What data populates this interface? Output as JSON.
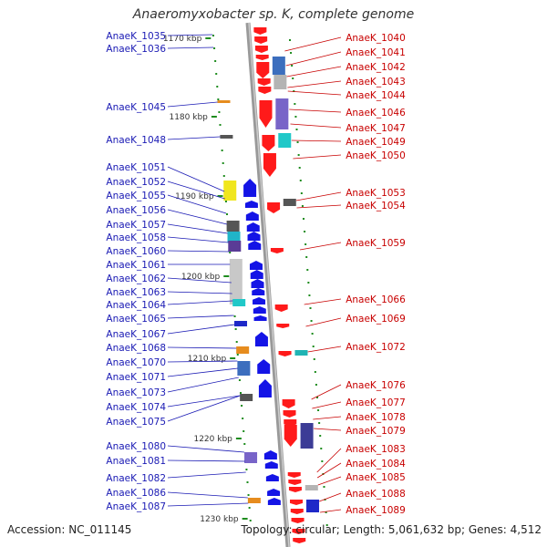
{
  "title": "Anaeromyxobacter sp. K, complete genome",
  "footer": {
    "accession": "Accession: NC_011145",
    "summary": "Topology: circular; Length: 5,061,632 bp; Genes: 4,512"
  },
  "colors": {
    "left_label": "#1a1ab4",
    "right_label": "#c80000",
    "forward_gene": "#ff1a1a",
    "reverse_gene": "#1414e6",
    "tick": "#1e8c1e",
    "backbone": "#999999"
  },
  "scale_ticks": [
    {
      "label": "1170 kbp",
      "position_kbp": 1170
    },
    {
      "label": "1180 kbp",
      "position_kbp": 1180
    },
    {
      "label": "1190 kbp",
      "position_kbp": 1190
    },
    {
      "label": "1200 kbp",
      "position_kbp": 1200
    },
    {
      "label": "1210 kbp",
      "position_kbp": 1210
    },
    {
      "label": "1220 kbp",
      "position_kbp": 1220
    },
    {
      "label": "1230 kbp",
      "position_kbp": 1230
    }
  ],
  "left_genes": [
    "AnaeK_1035",
    "AnaeK_1036",
    "AnaeK_1045",
    "AnaeK_1048",
    "AnaeK_1051",
    "AnaeK_1052",
    "AnaeK_1055",
    "AnaeK_1056",
    "AnaeK_1057",
    "AnaeK_1058",
    "AnaeK_1060",
    "AnaeK_1061",
    "AnaeK_1062",
    "AnaeK_1063",
    "AnaeK_1064",
    "AnaeK_1065",
    "AnaeK_1067",
    "AnaeK_1068",
    "AnaeK_1070",
    "AnaeK_1071",
    "AnaeK_1073",
    "AnaeK_1074",
    "AnaeK_1075",
    "AnaeK_1080",
    "AnaeK_1081",
    "AnaeK_1082",
    "AnaeK_1086",
    "AnaeK_1087"
  ],
  "right_genes": [
    "AnaeK_1040",
    "AnaeK_1041",
    "AnaeK_1042",
    "AnaeK_1043",
    "AnaeK_1044",
    "AnaeK_1046",
    "AnaeK_1047",
    "AnaeK_1049",
    "AnaeK_1050",
    "AnaeK_1053",
    "AnaeK_1054",
    "AnaeK_1059",
    "AnaeK_1066",
    "AnaeK_1069",
    "AnaeK_1072",
    "AnaeK_1076",
    "AnaeK_1077",
    "AnaeK_1078",
    "AnaeK_1079",
    "AnaeK_1083",
    "AnaeK_1084",
    "AnaeK_1085",
    "AnaeK_1088",
    "AnaeK_1089"
  ]
}
